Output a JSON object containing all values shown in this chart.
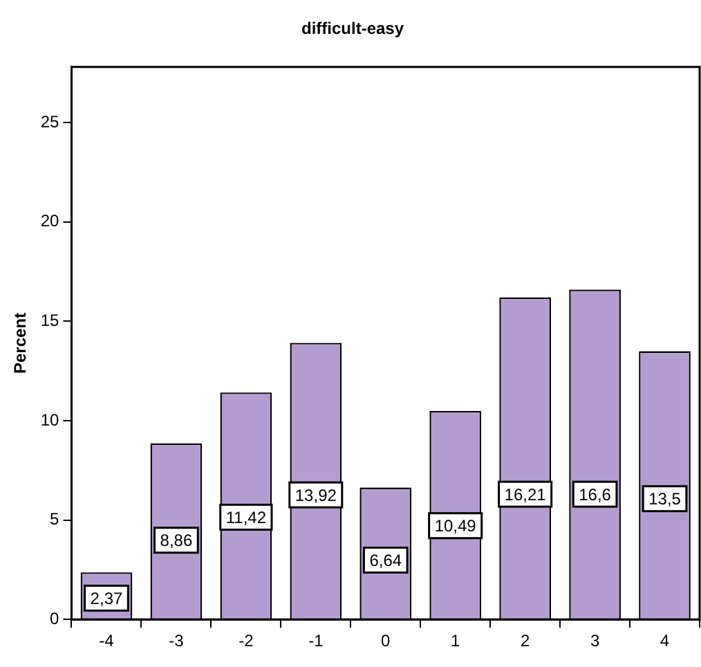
{
  "chart_data": {
    "type": "bar",
    "title": "difficult-easy",
    "ylabel": "Percent",
    "categories": [
      "-4",
      "-3",
      "-2",
      "-1",
      "0",
      "1",
      "2",
      "3",
      "4"
    ],
    "values": [
      2.37,
      8.86,
      11.42,
      13.92,
      6.64,
      10.49,
      16.21,
      16.6,
      13.5
    ],
    "value_labels": [
      "2,37",
      "8,86",
      "11,42",
      "13,92",
      "6,64",
      "10,49",
      "16,21",
      "16,6",
      "13,5"
    ],
    "color": "#b39dd0",
    "ylim": [
      0,
      27.8
    ],
    "yticks": [
      0,
      5,
      10,
      15,
      20,
      25
    ],
    "grid": false,
    "legend": false
  }
}
